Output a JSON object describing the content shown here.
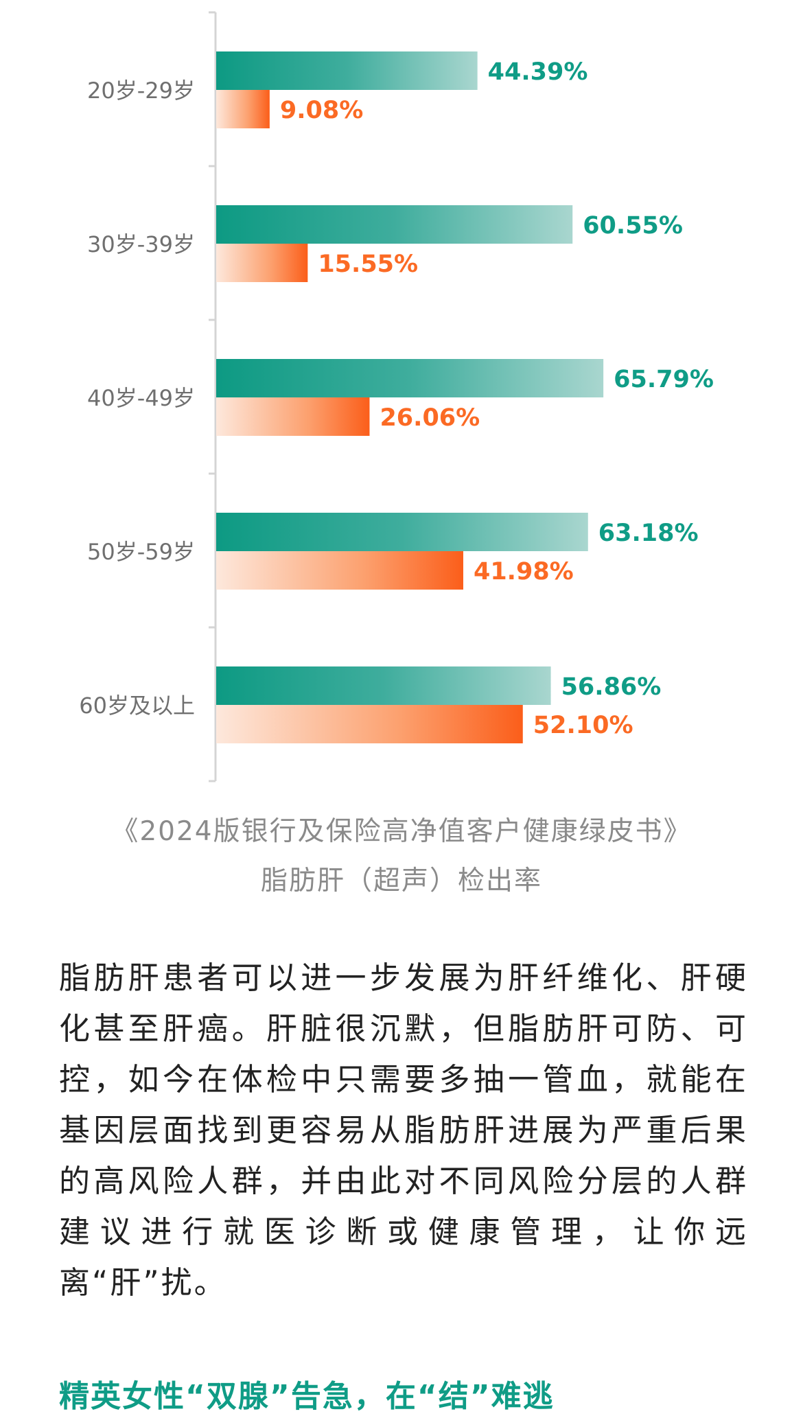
{
  "chart_data": {
    "type": "bar",
    "orientation": "horizontal",
    "categories": [
      "20岁-29岁",
      "30岁-39岁",
      "40岁-49岁",
      "50岁-59岁",
      "60岁及以上"
    ],
    "series": [
      {
        "values": [
          44.39,
          60.55,
          65.79,
          63.18,
          56.86
        ],
        "labels": [
          "44.39%",
          "60.55%",
          "65.79%",
          "63.18%",
          "56.86%"
        ],
        "color": "#0f9c86"
      },
      {
        "values": [
          9.08,
          15.55,
          26.06,
          41.98,
          52.1
        ],
        "labels": [
          "9.08%",
          "15.55%",
          "26.06%",
          "41.98%",
          "52.10%"
        ],
        "color": "#fb6a24"
      }
    ],
    "xlim": [
      0,
      100
    ],
    "grid": false,
    "legend": "none"
  },
  "caption": {
    "line1": "《2024版银行及保险高净值客户健康绿皮书》",
    "line2": "脂肪肝（超声）检出率"
  },
  "body_text": "脂肪肝患者可以进一步发展为肝纤维化、肝硬化甚至肝癌。肝脏很沉默，但脂肪肝可防、可控，如今在体检中只需要多抽一管血，就能在基因层面找到更容易从脂肪肝进展为严重后果的高风险人群，并由此对不同风险分层的人群建议进行就医诊断或健康管理，让你远离“肝”扰。",
  "section_heading": "精英女性“双腺”告急，在“结”难逃"
}
